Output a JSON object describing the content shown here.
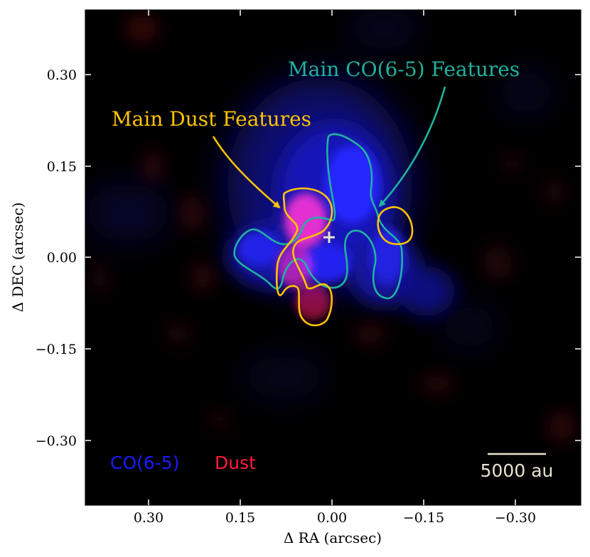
{
  "figure": {
    "x_axis_label": "Δ RA (arcsec)",
    "y_axis_label": "Δ DEC (arcsec)",
    "x_ticks": [
      "0.30",
      "0.15",
      "0.00",
      "−0.15",
      "−0.30"
    ],
    "y_ticks": [
      "0.30",
      "0.15",
      "0.00",
      "−0.15",
      "−0.30"
    ],
    "x_range_arcsec": [
      0.4,
      -0.4
    ],
    "y_range_arcsec": [
      -0.4,
      0.4
    ],
    "annotations": {
      "co": "Main CO(6-5) Features",
      "dust": "Main Dust Features"
    },
    "legend": {
      "co": "CO(6-5)",
      "dust": "Dust"
    },
    "scale_bar": "5000 au",
    "colors": {
      "co_emission": "#1a1aff",
      "dust_emission": "#ff1a3c",
      "co_contour": "#20b2a0",
      "dust_contour": "#ffc400",
      "scale_bar": "#e8e2d0",
      "background": "#000000"
    }
  }
}
